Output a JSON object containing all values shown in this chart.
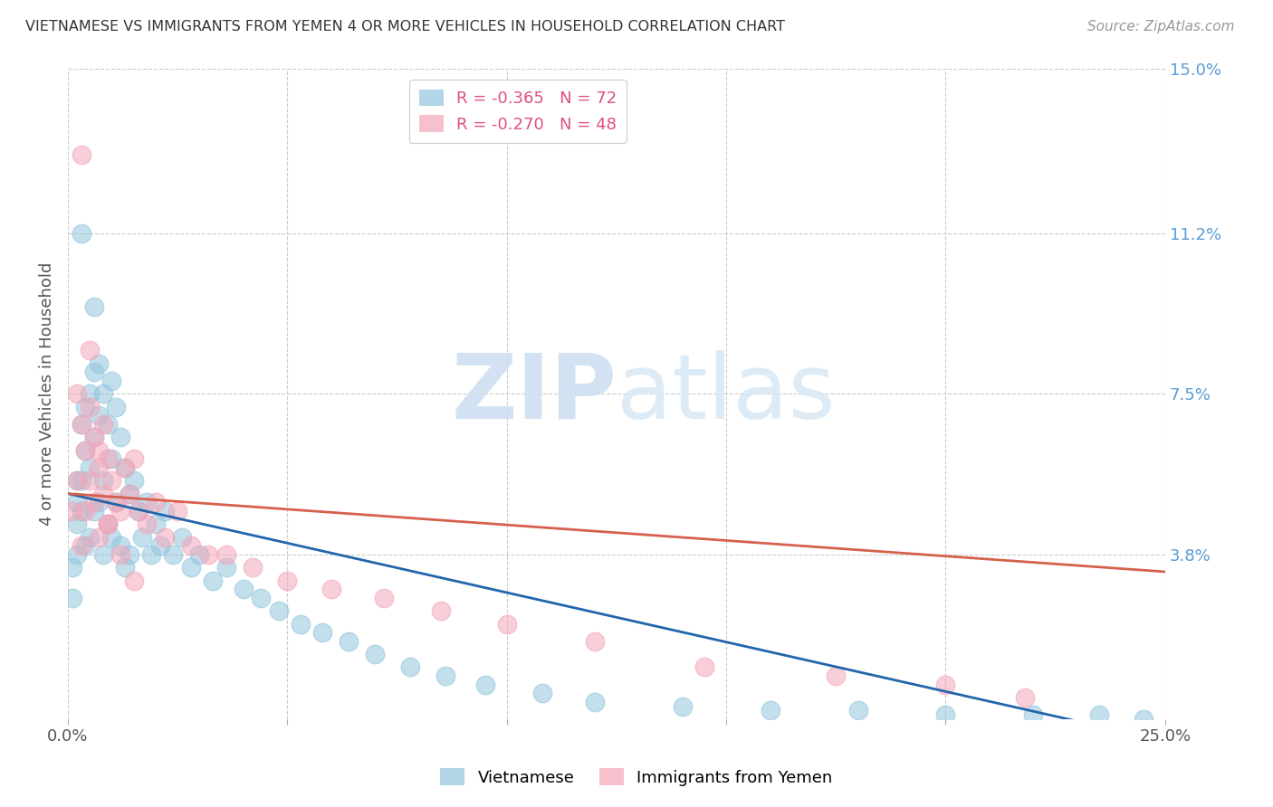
{
  "title": "VIETNAMESE VS IMMIGRANTS FROM YEMEN 4 OR MORE VEHICLES IN HOUSEHOLD CORRELATION CHART",
  "source": "Source: ZipAtlas.com",
  "ylabel": "4 or more Vehicles in Household",
  "x_min": 0.0,
  "x_max": 0.25,
  "y_min": 0.0,
  "y_max": 0.15,
  "y_ticks_right": [
    0.15,
    0.112,
    0.075,
    0.038
  ],
  "y_tick_labels_right": [
    "15.0%",
    "11.2%",
    "7.5%",
    "3.8%"
  ],
  "watermark_zip": "ZIP",
  "watermark_atlas": "atlas",
  "blue_color": "#92c5de",
  "pink_color": "#f4a6b8",
  "blue_line_color": "#2166ac",
  "pink_line_color": "#d6604d",
  "background_color": "#ffffff",
  "grid_color": "#cccccc",
  "legend_label_blue": "R = -0.365   N = 72",
  "legend_label_pink": "R = -0.270   N = 48",
  "legend_text_color": "#e05080",
  "title_color": "#333333",
  "source_color": "#999999",
  "right_axis_color": "#5b9bd5",
  "bottom_legend_blue": "Vietnamese",
  "bottom_legend_pink": "Immigrants from Yemen",
  "blue_line_x": [
    0.0,
    0.25
  ],
  "blue_line_y": [
    0.052,
    -0.005
  ],
  "pink_line_x": [
    0.0,
    0.25
  ],
  "pink_line_y": [
    0.052,
    0.034
  ],
  "vietnamese_x": [
    0.001,
    0.001,
    0.002,
    0.002,
    0.002,
    0.002,
    0.003,
    0.003,
    0.003,
    0.004,
    0.004,
    0.004,
    0.005,
    0.005,
    0.005,
    0.006,
    0.006,
    0.006,
    0.007,
    0.007,
    0.007,
    0.008,
    0.008,
    0.008,
    0.009,
    0.009,
    0.01,
    0.01,
    0.01,
    0.011,
    0.011,
    0.012,
    0.012,
    0.013,
    0.013,
    0.014,
    0.014,
    0.015,
    0.016,
    0.017,
    0.018,
    0.019,
    0.02,
    0.021,
    0.022,
    0.024,
    0.026,
    0.028,
    0.03,
    0.033,
    0.036,
    0.04,
    0.044,
    0.048,
    0.053,
    0.058,
    0.064,
    0.07,
    0.078,
    0.086,
    0.095,
    0.108,
    0.12,
    0.14,
    0.16,
    0.18,
    0.2,
    0.22,
    0.235,
    0.245,
    0.003,
    0.006
  ],
  "vietnamese_y": [
    0.035,
    0.028,
    0.045,
    0.038,
    0.05,
    0.055,
    0.068,
    0.055,
    0.048,
    0.062,
    0.072,
    0.04,
    0.075,
    0.058,
    0.042,
    0.08,
    0.065,
    0.048,
    0.082,
    0.07,
    0.05,
    0.075,
    0.055,
    0.038,
    0.068,
    0.045,
    0.078,
    0.06,
    0.042,
    0.072,
    0.05,
    0.065,
    0.04,
    0.058,
    0.035,
    0.052,
    0.038,
    0.055,
    0.048,
    0.042,
    0.05,
    0.038,
    0.045,
    0.04,
    0.048,
    0.038,
    0.042,
    0.035,
    0.038,
    0.032,
    0.035,
    0.03,
    0.028,
    0.025,
    0.022,
    0.02,
    0.018,
    0.015,
    0.012,
    0.01,
    0.008,
    0.006,
    0.004,
    0.003,
    0.002,
    0.002,
    0.001,
    0.001,
    0.001,
    0.0,
    0.112,
    0.095
  ],
  "yemen_x": [
    0.001,
    0.002,
    0.002,
    0.003,
    0.003,
    0.004,
    0.004,
    0.005,
    0.005,
    0.006,
    0.006,
    0.007,
    0.007,
    0.008,
    0.008,
    0.009,
    0.009,
    0.01,
    0.011,
    0.012,
    0.013,
    0.014,
    0.015,
    0.016,
    0.018,
    0.02,
    0.022,
    0.025,
    0.028,
    0.032,
    0.036,
    0.042,
    0.05,
    0.06,
    0.072,
    0.085,
    0.1,
    0.12,
    0.145,
    0.175,
    0.2,
    0.218,
    0.003,
    0.005,
    0.007,
    0.009,
    0.012,
    0.015
  ],
  "yemen_y": [
    0.048,
    0.075,
    0.055,
    0.068,
    0.04,
    0.062,
    0.048,
    0.072,
    0.055,
    0.065,
    0.05,
    0.058,
    0.042,
    0.068,
    0.052,
    0.06,
    0.045,
    0.055,
    0.05,
    0.048,
    0.058,
    0.052,
    0.06,
    0.048,
    0.045,
    0.05,
    0.042,
    0.048,
    0.04,
    0.038,
    0.038,
    0.035,
    0.032,
    0.03,
    0.028,
    0.025,
    0.022,
    0.018,
    0.012,
    0.01,
    0.008,
    0.005,
    0.13,
    0.085,
    0.062,
    0.045,
    0.038,
    0.032
  ]
}
